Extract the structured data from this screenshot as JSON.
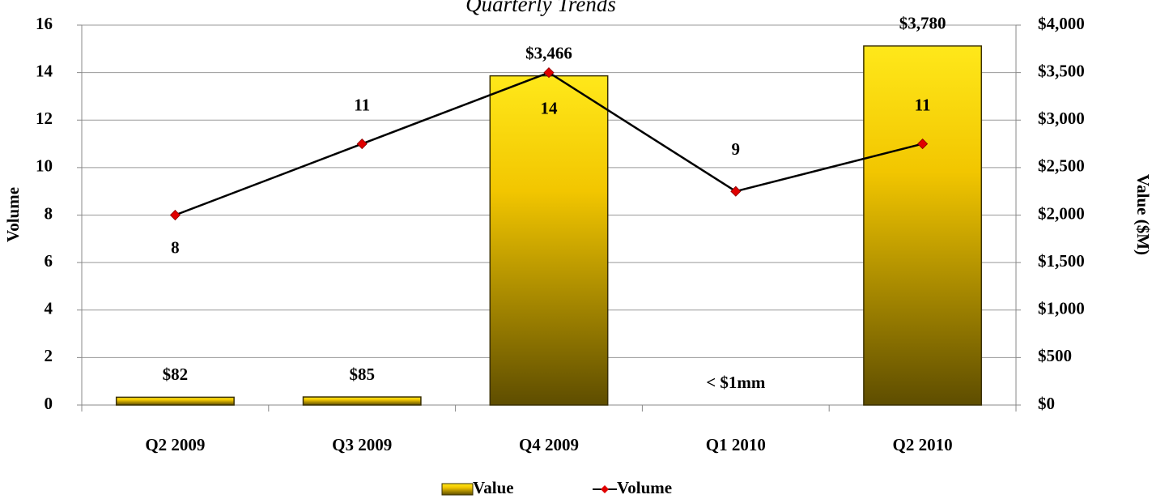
{
  "chart_data": {
    "type": "bar",
    "title": "Quarterly Trends",
    "categories": [
      "Q2 2009",
      "Q3 2009",
      "Q4 2009",
      "Q1 2010",
      "Q2 2010"
    ],
    "series": [
      {
        "name": "Value",
        "type": "bar",
        "axis": "y2",
        "color": "#ffd700",
        "values": [
          82,
          85,
          3466,
          0,
          3780
        ],
        "value_labels": [
          "$82",
          "$85",
          "$3,466",
          "< $1mm",
          "$3,780"
        ]
      },
      {
        "name": "Volume",
        "type": "line",
        "color": "#000000",
        "marker_color": "#e00000",
        "values": [
          8,
          11,
          14,
          9,
          11
        ]
      }
    ],
    "ylabel": "Volume",
    "y2label": "Value ($M)",
    "ylim": [
      0,
      16
    ],
    "yticks": [
      0,
      2,
      4,
      6,
      8,
      10,
      12,
      14,
      16
    ],
    "y2lim": [
      0,
      4000
    ],
    "y2ticks": [
      {
        "value": 0,
        "label": "$0"
      },
      {
        "value": 500,
        "label": "$500"
      },
      {
        "value": 1000,
        "label": "$1,000"
      },
      {
        "value": 1500,
        "label": "$1,500"
      },
      {
        "value": 2000,
        "label": "$2,000"
      },
      {
        "value": 2500,
        "label": "$2,500"
      },
      {
        "value": 3000,
        "label": "$3,000"
      },
      {
        "value": 3500,
        "label": "$3,500"
      },
      {
        "value": 4000,
        "label": "$4,000"
      }
    ],
    "grid": true,
    "legend": "bottom"
  }
}
